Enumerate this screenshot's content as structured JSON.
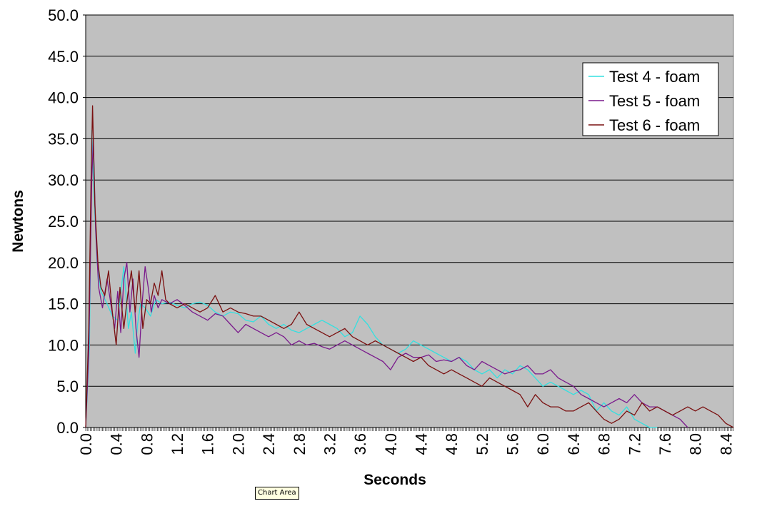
{
  "tooltip": "Chart Area",
  "colors": {
    "plot_bg": "#c0c0c0",
    "gridline": "#000000",
    "test4": "#33e0e0",
    "test5": "#7a1a8c",
    "test6": "#7a1010"
  },
  "chart_data": {
    "type": "line",
    "title": "",
    "xlabel": "Seconds",
    "ylabel": "Newtons",
    "xlim": [
      0,
      8.5
    ],
    "ylim": [
      0,
      50
    ],
    "x_ticks": [
      "0.0",
      "0.4",
      "0.8",
      "1.2",
      "1.6",
      "2.0",
      "2.4",
      "2.8",
      "3.2",
      "3.6",
      "4.0",
      "4.4",
      "4.8",
      "5.2",
      "5.6",
      "6.0",
      "6.4",
      "6.8",
      "7.2",
      "7.6",
      "8.0",
      "8.4"
    ],
    "y_ticks": [
      "0.0",
      "5.0",
      "10.0",
      "15.0",
      "20.0",
      "25.0",
      "30.0",
      "35.0",
      "40.0",
      "45.0",
      "50.0"
    ],
    "grid": true,
    "legend_position": "top-right",
    "series": [
      {
        "name": "Test 4 - foam",
        "color": "#33e0e0",
        "x": [
          0.0,
          0.05,
          0.08,
          0.11,
          0.15,
          0.2,
          0.28,
          0.35,
          0.42,
          0.5,
          0.56,
          0.6,
          0.65,
          0.68,
          0.72,
          0.78,
          0.85,
          0.92,
          1.0,
          1.1,
          1.2,
          1.3,
          1.4,
          1.5,
          1.6,
          1.7,
          1.8,
          1.9,
          2.0,
          2.1,
          2.2,
          2.3,
          2.4,
          2.5,
          2.6,
          2.7,
          2.8,
          2.9,
          3.0,
          3.1,
          3.2,
          3.3,
          3.4,
          3.5,
          3.6,
          3.7,
          3.8,
          3.9,
          4.0,
          4.1,
          4.2,
          4.3,
          4.4,
          4.5,
          4.6,
          4.7,
          4.8,
          4.9,
          5.0,
          5.1,
          5.2,
          5.3,
          5.4,
          5.5,
          5.6,
          5.7,
          5.8,
          5.9,
          6.0,
          6.1,
          6.2,
          6.3,
          6.4,
          6.5,
          6.6,
          6.7,
          6.8,
          6.9,
          7.0,
          7.1,
          7.2,
          7.3,
          7.4,
          7.5
        ],
        "y": [
          0.0,
          10.0,
          36.0,
          28.0,
          20.0,
          16.5,
          15.0,
          13.5,
          13.0,
          19.5,
          12.0,
          14.0,
          9.0,
          12.5,
          15.0,
          14.5,
          13.5,
          15.5,
          15.0,
          15.2,
          14.8,
          14.5,
          15.0,
          15.2,
          14.8,
          14.0,
          13.5,
          14.0,
          13.8,
          13.0,
          12.8,
          13.5,
          12.5,
          12.0,
          12.5,
          11.8,
          11.5,
          12.0,
          12.5,
          13.0,
          12.5,
          12.0,
          11.0,
          11.5,
          13.5,
          12.5,
          11.0,
          10.0,
          9.5,
          9.0,
          9.5,
          10.5,
          10.0,
          9.5,
          9.0,
          8.5,
          8.0,
          8.5,
          8.0,
          7.0,
          6.5,
          7.0,
          6.0,
          7.0,
          6.5,
          7.5,
          7.0,
          6.0,
          5.0,
          5.5,
          5.0,
          4.5,
          4.0,
          4.5,
          4.0,
          2.0,
          3.0,
          2.0,
          1.5,
          2.5,
          1.0,
          0.5,
          0.0,
          0.0
        ]
      },
      {
        "name": "Test 5 - foam",
        "color": "#7a1a8c",
        "x": [
          0.0,
          0.04,
          0.08,
          0.1,
          0.13,
          0.17,
          0.22,
          0.28,
          0.33,
          0.38,
          0.42,
          0.46,
          0.5,
          0.54,
          0.58,
          0.62,
          0.66,
          0.7,
          0.74,
          0.78,
          0.82,
          0.86,
          0.9,
          0.95,
          1.0,
          1.1,
          1.2,
          1.3,
          1.4,
          1.5,
          1.6,
          1.7,
          1.8,
          1.9,
          2.0,
          2.1,
          2.2,
          2.3,
          2.4,
          2.5,
          2.6,
          2.7,
          2.8,
          2.9,
          3.0,
          3.1,
          3.2,
          3.3,
          3.4,
          3.5,
          3.6,
          3.7,
          3.8,
          3.9,
          4.0,
          4.1,
          4.2,
          4.3,
          4.4,
          4.5,
          4.6,
          4.7,
          4.8,
          4.9,
          5.0,
          5.1,
          5.2,
          5.3,
          5.4,
          5.5,
          5.6,
          5.7,
          5.8,
          5.9,
          6.0,
          6.1,
          6.2,
          6.3,
          6.4,
          6.5,
          6.6,
          6.7,
          6.8,
          6.9,
          7.0,
          7.1,
          7.2,
          7.3,
          7.4,
          7.5,
          7.6,
          7.7,
          7.8,
          7.9
        ],
        "y": [
          0.0,
          9.0,
          30.0,
          35.0,
          24.0,
          17.0,
          14.5,
          18.0,
          15.0,
          12.0,
          16.5,
          11.5,
          18.0,
          20.0,
          14.0,
          18.0,
          12.0,
          8.5,
          15.0,
          19.5,
          17.0,
          14.0,
          16.0,
          14.5,
          15.5,
          15.0,
          15.5,
          14.8,
          14.0,
          13.5,
          13.0,
          13.8,
          13.5,
          12.5,
          11.5,
          12.5,
          12.0,
          11.5,
          11.0,
          11.5,
          11.0,
          10.0,
          10.5,
          10.0,
          10.2,
          9.8,
          9.5,
          10.0,
          10.5,
          10.0,
          9.5,
          9.0,
          8.5,
          8.0,
          7.0,
          8.5,
          9.0,
          8.5,
          8.5,
          8.8,
          8.0,
          8.2,
          8.0,
          8.5,
          7.5,
          7.0,
          8.0,
          7.5,
          7.0,
          6.5,
          6.8,
          7.0,
          7.5,
          6.5,
          6.5,
          7.0,
          6.0,
          5.5,
          5.0,
          4.0,
          3.5,
          3.0,
          2.5,
          3.0,
          3.5,
          3.0,
          4.0,
          3.0,
          2.5,
          2.5,
          2.0,
          1.5,
          1.0,
          0.0
        ]
      },
      {
        "name": "Test 6 - foam",
        "color": "#7a1010",
        "x": [
          0.0,
          0.04,
          0.07,
          0.09,
          0.12,
          0.16,
          0.2,
          0.25,
          0.3,
          0.35,
          0.4,
          0.45,
          0.5,
          0.55,
          0.6,
          0.65,
          0.7,
          0.75,
          0.8,
          0.85,
          0.9,
          0.95,
          1.0,
          1.05,
          1.1,
          1.2,
          1.3,
          1.4,
          1.5,
          1.6,
          1.7,
          1.8,
          1.9,
          2.0,
          2.1,
          2.2,
          2.3,
          2.4,
          2.5,
          2.6,
          2.7,
          2.8,
          2.9,
          3.0,
          3.1,
          3.2,
          3.3,
          3.4,
          3.5,
          3.6,
          3.7,
          3.8,
          3.9,
          4.0,
          4.1,
          4.2,
          4.3,
          4.4,
          4.5,
          4.6,
          4.7,
          4.8,
          4.9,
          5.0,
          5.1,
          5.2,
          5.3,
          5.4,
          5.5,
          5.6,
          5.7,
          5.8,
          5.9,
          6.0,
          6.1,
          6.2,
          6.3,
          6.4,
          6.5,
          6.6,
          6.7,
          6.8,
          6.9,
          7.0,
          7.1,
          7.2,
          7.3,
          7.4,
          7.5,
          7.6,
          7.7,
          7.8,
          7.9,
          8.0,
          8.1,
          8.2,
          8.3,
          8.4,
          8.5
        ],
        "y": [
          0.0,
          12.0,
          30.0,
          39.0,
          27.0,
          20.0,
          17.0,
          16.0,
          19.0,
          14.0,
          10.0,
          17.0,
          12.0,
          16.0,
          19.0,
          14.0,
          19.0,
          12.0,
          15.5,
          15.0,
          17.5,
          16.0,
          19.0,
          15.5,
          15.0,
          14.5,
          15.0,
          14.5,
          14.0,
          14.5,
          16.0,
          14.0,
          14.5,
          14.0,
          13.8,
          13.5,
          13.5,
          13.0,
          12.5,
          12.0,
          12.5,
          14.0,
          12.5,
          12.0,
          11.5,
          11.0,
          11.5,
          12.0,
          11.0,
          10.5,
          10.0,
          10.5,
          10.0,
          9.5,
          9.0,
          8.5,
          8.0,
          8.5,
          7.5,
          7.0,
          6.5,
          7.0,
          6.5,
          6.0,
          5.5,
          5.0,
          6.0,
          5.5,
          5.0,
          4.5,
          4.0,
          2.5,
          4.0,
          3.0,
          2.5,
          2.5,
          2.0,
          2.0,
          2.5,
          3.0,
          2.0,
          1.0,
          0.5,
          1.0,
          2.0,
          1.5,
          3.0,
          2.0,
          2.5,
          2.0,
          1.5,
          2.0,
          2.5,
          2.0,
          2.5,
          2.0,
          1.5,
          0.5,
          0.0
        ]
      }
    ]
  }
}
